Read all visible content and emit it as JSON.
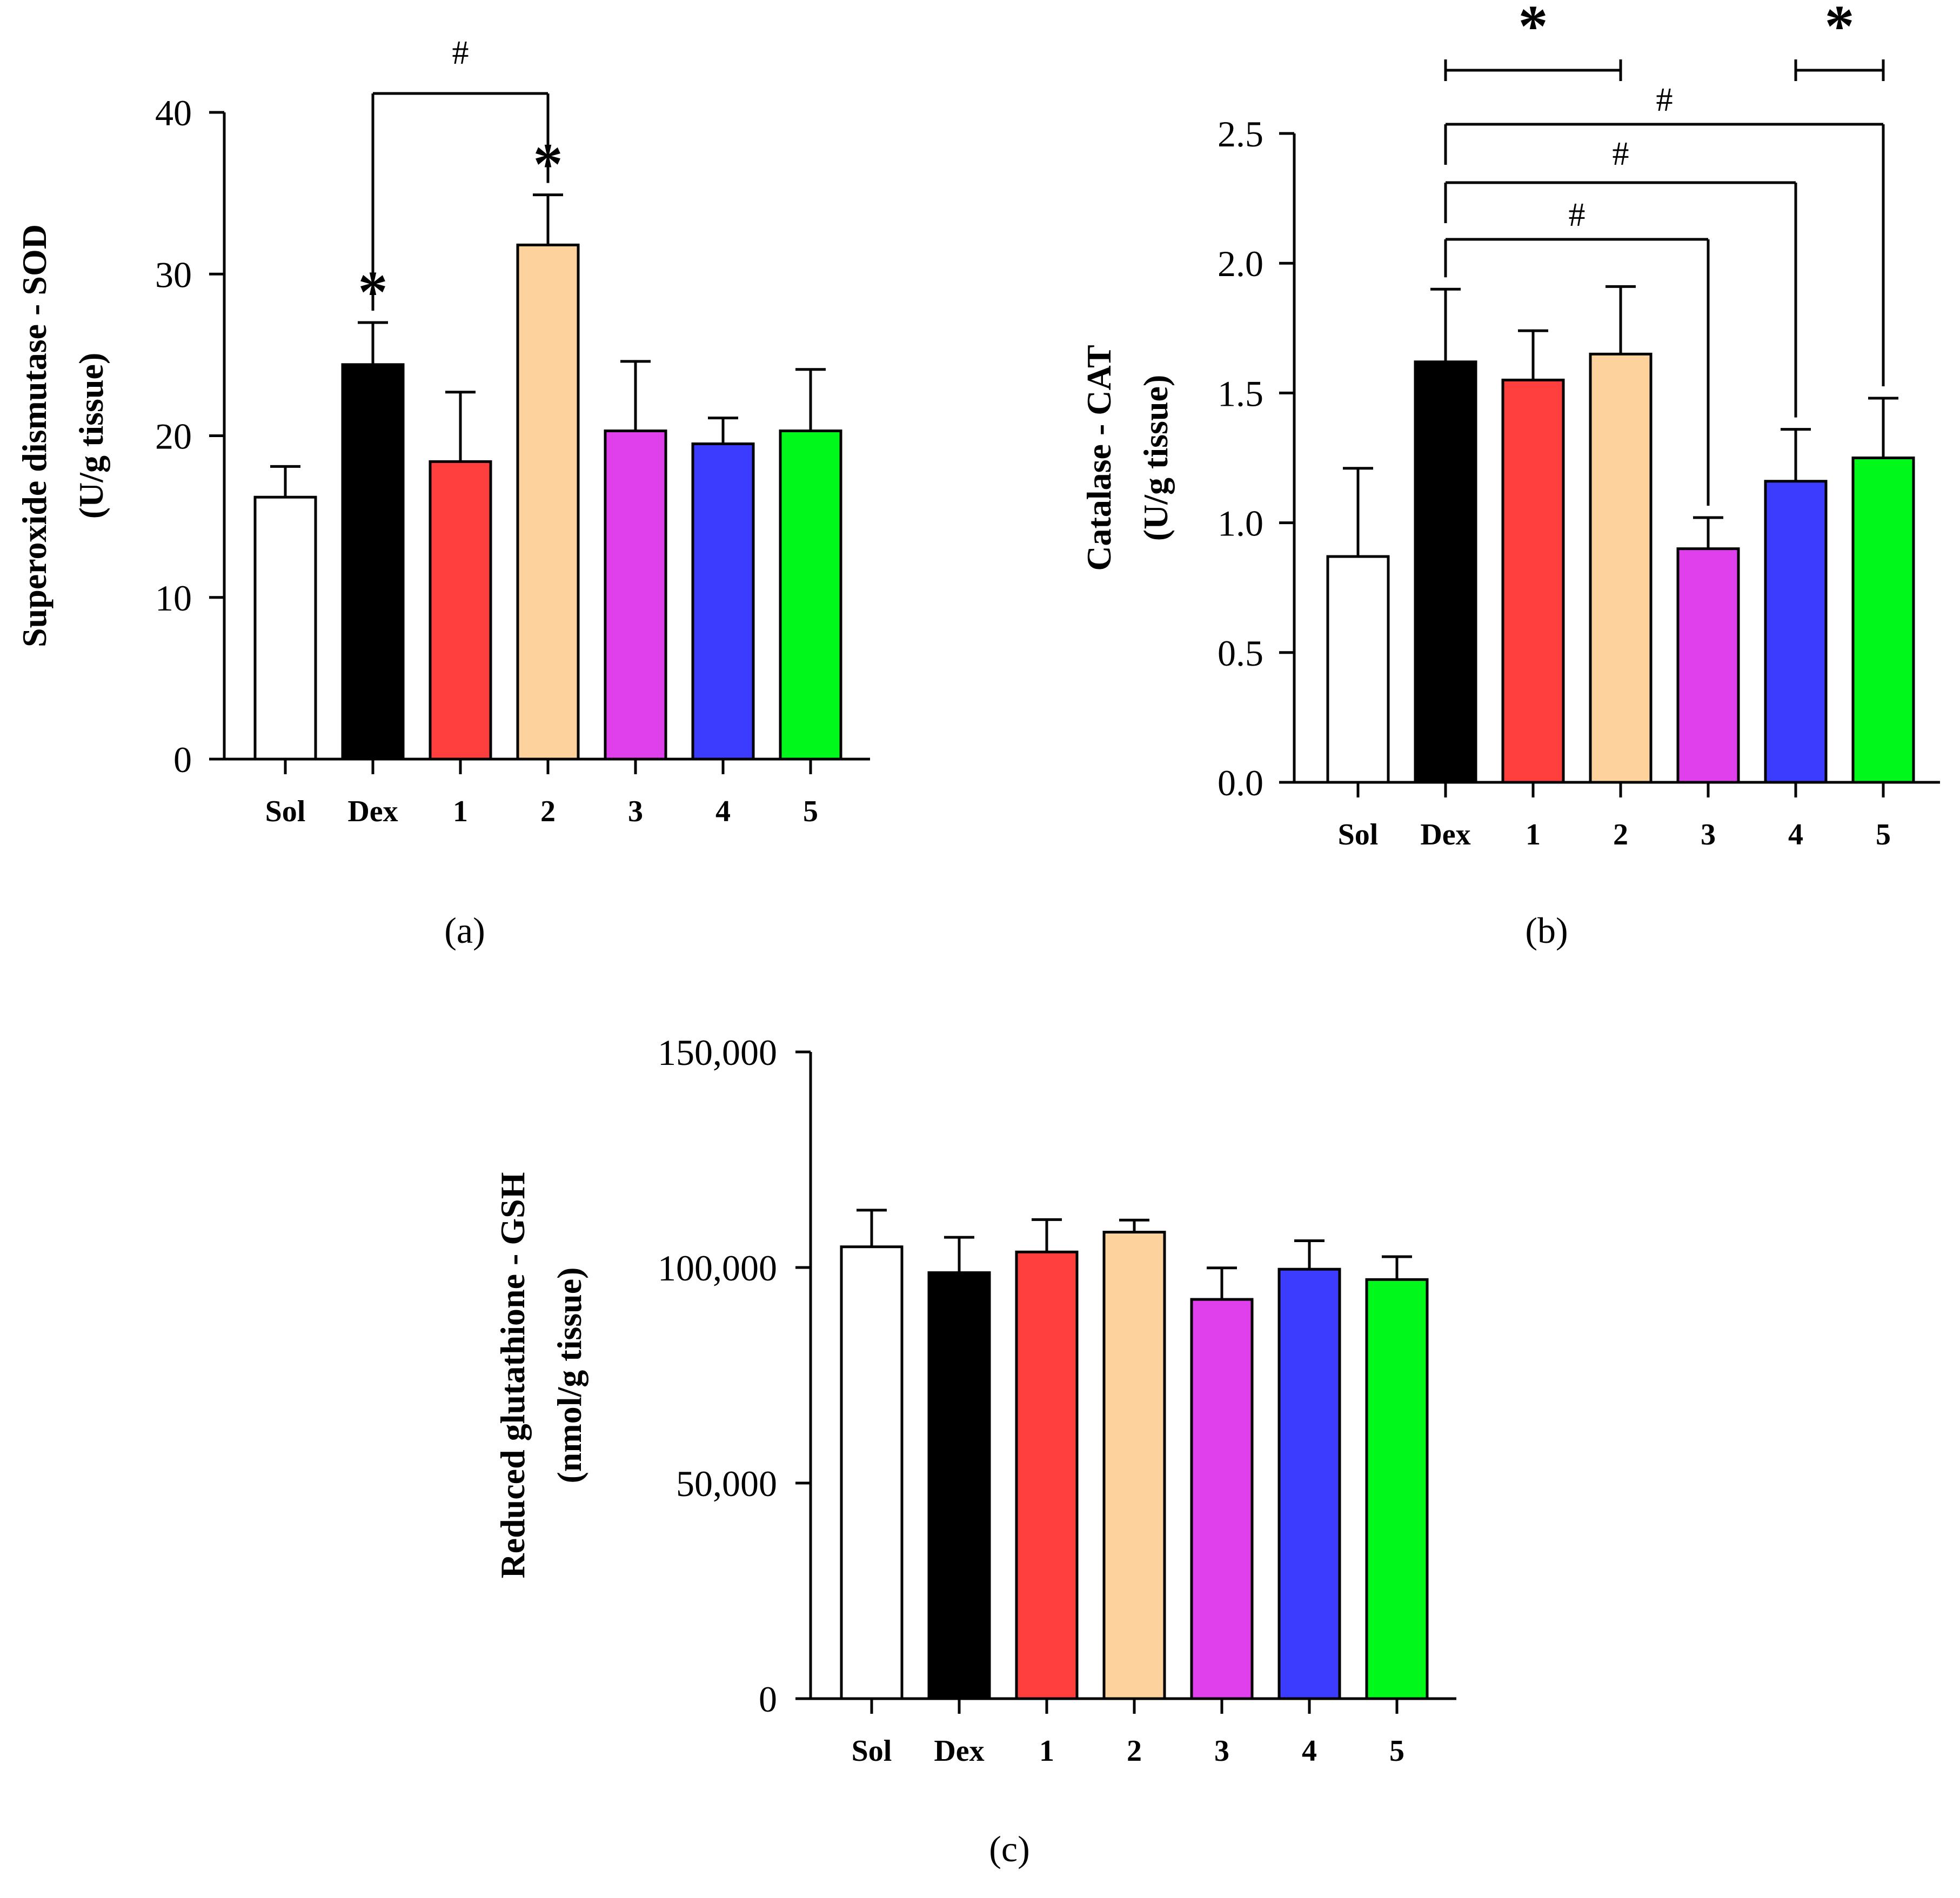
{
  "colors": {
    "Sol": "#ffffff",
    "Dex": "#000000",
    "1": "#ff3e3e",
    "2": "#fdd29d",
    "3": "#e040ec",
    "4": "#3b3cfe",
    "5": "#00f91a"
  },
  "chart_data": [
    {
      "type": "bar",
      "panel_label": "(a)",
      "ylabel_line1": "Superoxide dismutase - SOD",
      "ylabel_line2": "(U/g tissue)",
      "categories": [
        "Sol",
        "Dex",
        "1",
        "2",
        "3",
        "4",
        "5"
      ],
      "values": [
        16.2,
        24.4,
        18.4,
        31.8,
        20.3,
        19.5,
        20.3
      ],
      "errors": [
        1.9,
        2.6,
        4.3,
        3.1,
        4.3,
        1.6,
        3.8
      ],
      "ylim": [
        0,
        40
      ],
      "yticks": [
        0,
        10,
        20,
        30,
        40
      ],
      "ytick_labels": [
        "0",
        "10",
        "20",
        "30",
        "40"
      ],
      "bar_marks": [
        {
          "category": "Dex",
          "symbol": "*"
        },
        {
          "category": "2",
          "symbol": "*"
        }
      ],
      "brackets": [
        {
          "from": "Dex",
          "to": "2",
          "symbol": "#",
          "style": "down-ticks",
          "left_to_bar": true,
          "right_to_bar": true
        }
      ]
    },
    {
      "type": "bar",
      "panel_label": "(b)",
      "ylabel_line1": "Catalase - CAT",
      "ylabel_line2": "(U/g tissue)",
      "categories": [
        "Sol",
        "Dex",
        "1",
        "2",
        "3",
        "4",
        "5"
      ],
      "values": [
        0.87,
        1.62,
        1.55,
        1.65,
        0.9,
        1.16,
        1.25
      ],
      "errors": [
        0.34,
        0.28,
        0.19,
        0.26,
        0.12,
        0.2,
        0.23
      ],
      "ylim": [
        0,
        2.5
      ],
      "yticks": [
        0,
        0.5,
        1.0,
        1.5,
        2.0,
        2.5
      ],
      "ytick_labels": [
        "0.0",
        "0.5",
        "1.0",
        "1.5",
        "2.0",
        "2.5"
      ],
      "bar_marks": [],
      "brackets": [
        {
          "from": "Dex",
          "to": "2",
          "symbol": "*",
          "style": "h-ticks"
        },
        {
          "from": "4",
          "to": "5",
          "symbol": "*",
          "style": "h-ticks"
        },
        {
          "from": "Dex",
          "to": "5",
          "symbol": "#",
          "style": "down-ticks",
          "left_to_bar": true,
          "right_to_bar": true
        },
        {
          "from": "Dex",
          "to": "4",
          "symbol": "#",
          "style": "down-ticks",
          "left_to_bar": true,
          "right_to_bar": true
        },
        {
          "from": "Dex",
          "to": "3",
          "symbol": "#",
          "style": "down-ticks",
          "left_to_bar": true,
          "right_to_bar": true
        }
      ]
    },
    {
      "type": "bar",
      "panel_label": "(c)",
      "ylabel_line1": "Reduced glutathione - GSH",
      "ylabel_line2": "(nmol/g tissue)",
      "categories": [
        "Sol",
        "Dex",
        "1",
        "2",
        "3",
        "4",
        "5"
      ],
      "values": [
        104800,
        98800,
        103600,
        108200,
        92600,
        99600,
        97200
      ],
      "errors": [
        8500,
        8200,
        7500,
        2800,
        7300,
        6600,
        5300
      ],
      "ylim": [
        0,
        150000
      ],
      "yticks": [
        0,
        50000,
        100000,
        150000
      ],
      "ytick_labels": [
        "0",
        "50,000",
        "100,000",
        "150,000"
      ],
      "bar_marks": [],
      "brackets": []
    }
  ]
}
